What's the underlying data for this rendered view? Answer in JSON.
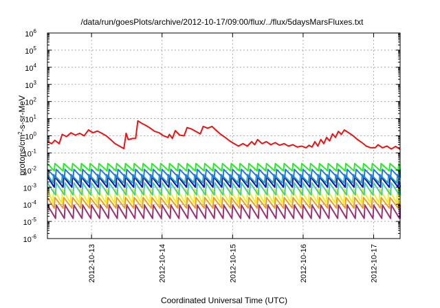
{
  "chart_data": {
    "type": "line",
    "title": "/data/run/goesPlots/archive/2012-10-17/09:00/flux/../flux/5daysMarsFluxes.txt",
    "xlabel": "Coordinated Universal Time (UTC)",
    "ylabel": "protons/cm²-s-sr-MeV",
    "ylabel_parts": {
      "pre": "protons/cm",
      "sup": "2",
      "post": "-s-sr-MeV"
    },
    "y_scale": "log",
    "ylim": [
      1e-06,
      1000000.0
    ],
    "yticks": [
      {
        "base": "10",
        "exp": "-6"
      },
      {
        "base": "10",
        "exp": "-5"
      },
      {
        "base": "10",
        "exp": "-4"
      },
      {
        "base": "10",
        "exp": "-3"
      },
      {
        "base": "10",
        "exp": "-2"
      },
      {
        "base": "10",
        "exp": "-1"
      },
      {
        "base": "10",
        "exp": "0"
      },
      {
        "base": "10",
        "exp": "1"
      },
      {
        "base": "10",
        "exp": "2"
      },
      {
        "base": "10",
        "exp": "3"
      },
      {
        "base": "10",
        "exp": "4"
      },
      {
        "base": "10",
        "exp": "5"
      },
      {
        "base": "10",
        "exp": "6"
      }
    ],
    "xlim": [
      "2012-10-12T09:00",
      "2012-10-17T09:00"
    ],
    "xticks": [
      "2012-10-13",
      "2012-10-14",
      "2012-10-15",
      "2012-10-16",
      "2012-10-17"
    ],
    "grid": true,
    "legend": "none",
    "series": [
      {
        "color": "#ee1111",
        "points": [
          [
            "2012-10-12T09:00",
            0.45
          ],
          [
            "2012-10-12T10:30",
            0.35
          ],
          [
            "2012-10-12T11:30",
            0.55
          ],
          [
            "2012-10-12T13:00",
            0.35
          ],
          [
            "2012-10-12T14:00",
            1.2
          ],
          [
            "2012-10-12T15:30",
            0.9
          ],
          [
            "2012-10-12T17:00",
            1.5
          ],
          [
            "2012-10-12T18:30",
            1.1
          ],
          [
            "2012-10-12T20:00",
            1.4
          ],
          [
            "2012-10-12T21:30",
            1.0
          ],
          [
            "2012-10-12T23:00",
            2.2
          ],
          [
            "2012-10-13T00:30",
            1.5
          ],
          [
            "2012-10-13T02:00",
            1.9
          ],
          [
            "2012-10-13T03:30",
            1.4
          ],
          [
            "2012-10-13T05:00",
            1.0
          ],
          [
            "2012-10-13T06:30",
            0.6
          ],
          [
            "2012-10-13T08:00",
            0.35
          ],
          [
            "2012-10-13T09:30",
            0.25
          ],
          [
            "2012-10-13T11:00",
            0.18
          ],
          [
            "2012-10-13T11:45",
            1.4
          ],
          [
            "2012-10-13T12:30",
            0.6
          ],
          [
            "2012-10-13T14:00",
            0.7
          ],
          [
            "2012-10-13T15:00",
            0.7
          ],
          [
            "2012-10-13T15:45",
            7.5
          ],
          [
            "2012-10-13T17:00",
            5.5
          ],
          [
            "2012-10-13T18:30",
            4.0
          ],
          [
            "2012-10-13T20:00",
            2.8
          ],
          [
            "2012-10-13T21:30",
            1.8
          ],
          [
            "2012-10-13T23:00",
            1.5
          ],
          [
            "2012-10-14T00:30",
            1.0
          ],
          [
            "2012-10-14T02:00",
            0.8
          ],
          [
            "2012-10-14T02:30",
            1.2
          ],
          [
            "2012-10-14T03:30",
            0.7
          ],
          [
            "2012-10-14T04:30",
            2.0
          ],
          [
            "2012-10-14T06:00",
            1.1
          ],
          [
            "2012-10-14T07:30",
            1.0
          ],
          [
            "2012-10-14T08:30",
            3.0
          ],
          [
            "2012-10-14T10:00",
            2.5
          ],
          [
            "2012-10-14T11:30",
            1.8
          ],
          [
            "2012-10-14T13:00",
            1.3
          ],
          [
            "2012-10-14T14:00",
            3.5
          ],
          [
            "2012-10-14T15:30",
            2.8
          ],
          [
            "2012-10-14T17:00",
            3.5
          ],
          [
            "2012-10-14T18:30",
            2.0
          ],
          [
            "2012-10-14T20:00",
            1.2
          ],
          [
            "2012-10-14T21:30",
            0.8
          ],
          [
            "2012-10-14T23:00",
            0.5
          ],
          [
            "2012-10-15T00:30",
            0.35
          ],
          [
            "2012-10-15T02:00",
            0.25
          ],
          [
            "2012-10-15T03:30",
            0.35
          ],
          [
            "2012-10-15T05:00",
            0.25
          ],
          [
            "2012-10-15T06:30",
            0.45
          ],
          [
            "2012-10-15T07:30",
            0.3
          ],
          [
            "2012-10-15T08:30",
            0.6
          ],
          [
            "2012-10-15T10:00",
            0.35
          ],
          [
            "2012-10-15T11:30",
            0.45
          ],
          [
            "2012-10-15T13:00",
            0.3
          ],
          [
            "2012-10-15T14:30",
            0.4
          ],
          [
            "2012-10-15T16:00",
            0.28
          ],
          [
            "2012-10-15T17:30",
            0.35
          ],
          [
            "2012-10-15T19:00",
            0.25
          ],
          [
            "2012-10-15T20:30",
            0.3
          ],
          [
            "2012-10-15T22:00",
            0.22
          ],
          [
            "2012-10-15T23:30",
            0.25
          ],
          [
            "2012-10-16T01:00",
            0.2
          ],
          [
            "2012-10-16T02:00",
            0.28
          ],
          [
            "2012-10-16T03:00",
            0.22
          ],
          [
            "2012-10-16T04:00",
            0.45
          ],
          [
            "2012-10-16T05:00",
            0.25
          ],
          [
            "2012-10-16T06:00",
            0.6
          ],
          [
            "2012-10-16T07:00",
            0.35
          ],
          [
            "2012-10-16T08:00",
            0.8
          ],
          [
            "2012-10-16T09:00",
            0.5
          ],
          [
            "2012-10-16T10:00",
            1.3
          ],
          [
            "2012-10-16T11:00",
            0.8
          ],
          [
            "2012-10-16T12:00",
            1.8
          ],
          [
            "2012-10-16T13:00",
            1.2
          ],
          [
            "2012-10-16T14:00",
            2.2
          ],
          [
            "2012-10-16T15:30",
            1.5
          ],
          [
            "2012-10-16T17:00",
            1.0
          ],
          [
            "2012-10-16T18:30",
            0.6
          ],
          [
            "2012-10-16T20:00",
            0.4
          ],
          [
            "2012-10-16T21:30",
            0.25
          ],
          [
            "2012-10-16T23:00",
            0.2
          ],
          [
            "2012-10-17T00:30",
            0.2
          ],
          [
            "2012-10-17T01:30",
            0.3
          ],
          [
            "2012-10-17T03:00",
            0.2
          ],
          [
            "2012-10-17T04:30",
            0.25
          ],
          [
            "2012-10-17T06:00",
            0.17
          ],
          [
            "2012-10-17T07:30",
            0.24
          ],
          [
            "2012-10-17T09:00",
            0.16
          ]
        ]
      },
      {
        "color": "#22ee22",
        "period_hours": 3,
        "peak": 0.024,
        "trough": 0.009,
        "trend": 0
      },
      {
        "color": "#2277ee",
        "period_hours": 3,
        "peak": 0.011,
        "trough": 0.0035,
        "trend": 0
      },
      {
        "color": "#22aaaa",
        "period_hours": 3,
        "peak": 0.0055,
        "trough": 0.0018,
        "trend": 0
      },
      {
        "color": "#1111bb",
        "period_hours": 3,
        "peak": 0.004,
        "trough": 0.001,
        "trend": 0
      },
      {
        "color": "#44ccaa",
        "period_hours": 3,
        "peak": 0.0018,
        "trough": 0.00035,
        "trend": 0
      },
      {
        "color": "#eeee22",
        "period_hours": 3,
        "peak": 0.0008,
        "trough": 0.00012,
        "trend": 0
      },
      {
        "color": "#ee9922",
        "period_hours": 3,
        "peak": 0.00025,
        "trough": 6e-05,
        "trend": 0
      },
      {
        "color": "#993377",
        "period_hours": 3,
        "peak": 9e-05,
        "trough": 1.5e-05,
        "trend": 0
      }
    ]
  }
}
